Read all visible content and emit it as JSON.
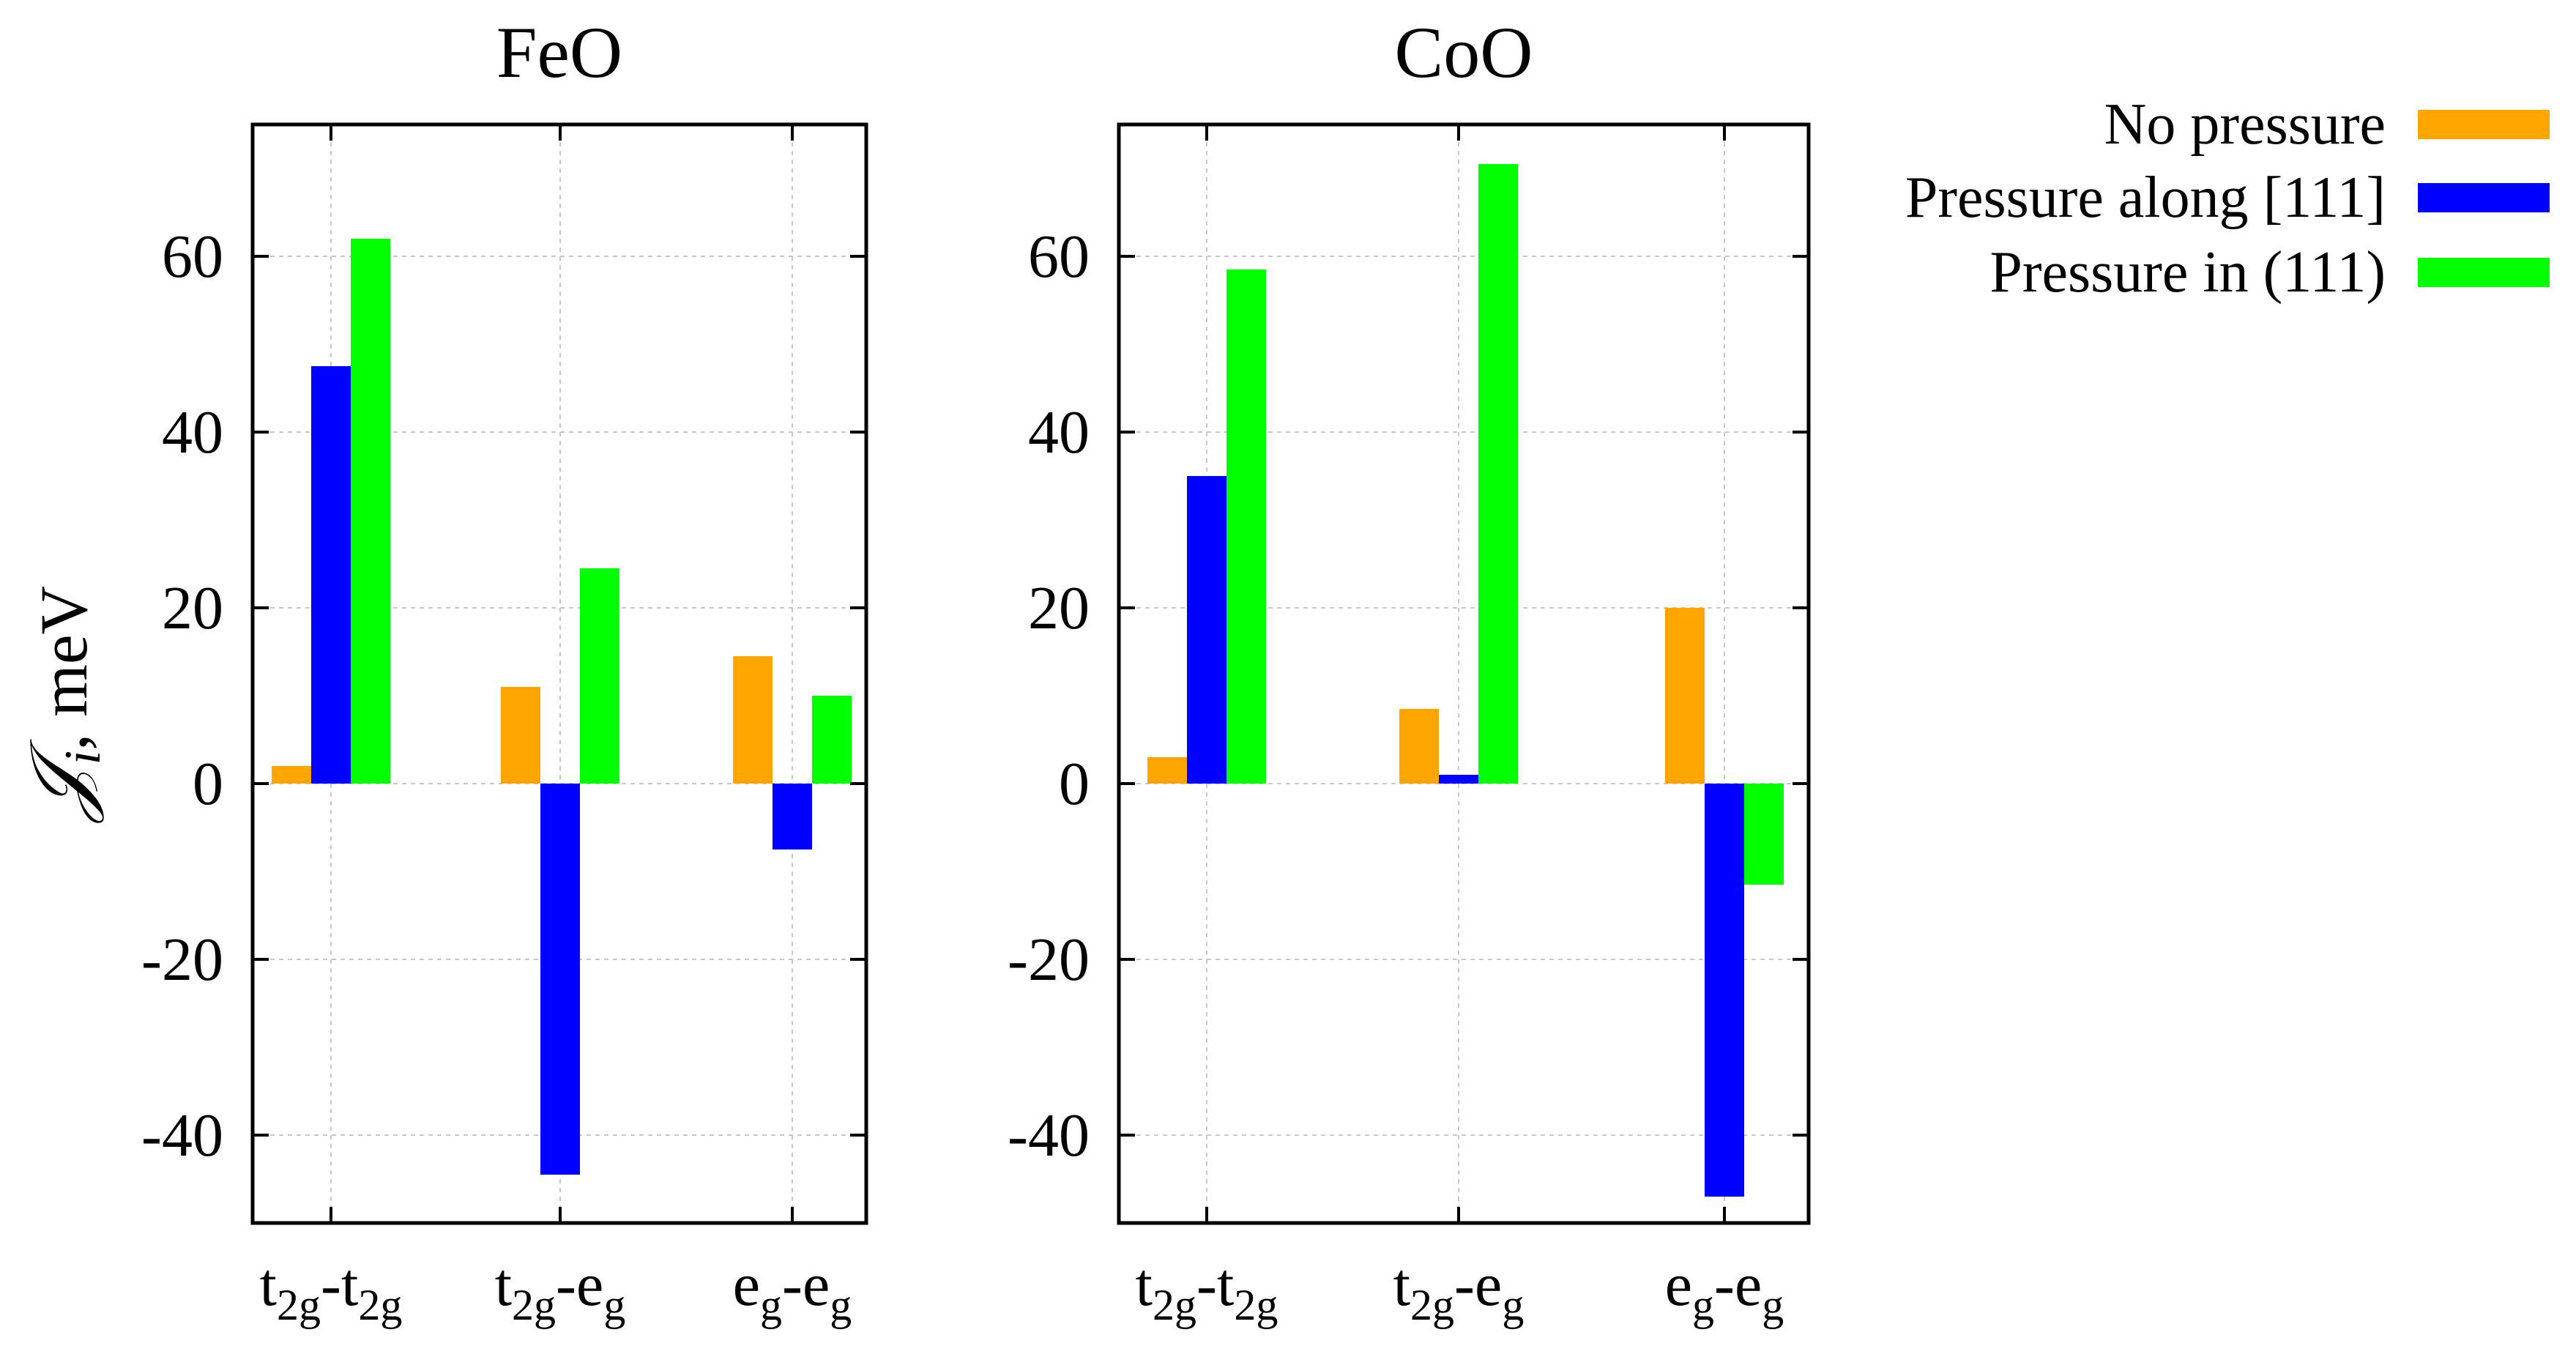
{
  "ylabel_main": "𝒥",
  "ylabel_sub": "i",
  "ylabel_rest": ", meV",
  "legend": [
    {
      "label": "No pressure",
      "color": "#ffa500"
    },
    {
      "label": "Pressure along [111]",
      "color": "#0000ff"
    },
    {
      "label": "Pressure in (111)",
      "color": "#00ff00"
    }
  ],
  "category_labels": [
    {
      "a": "t",
      "as": "2g",
      "sep": "-",
      "b": "t",
      "bs": "2g"
    },
    {
      "a": "t",
      "as": "2g",
      "sep": "-",
      "b": "e",
      "bs": "g"
    },
    {
      "a": "e",
      "as": "g",
      "sep": "-",
      "b": "e",
      "bs": "g"
    }
  ],
  "chart_data": [
    {
      "type": "bar",
      "title": "FeO",
      "categories": [
        "t2g-t2g",
        "t2g-eg",
        "eg-eg"
      ],
      "ylabel": "𝒥i, meV",
      "ylim": [
        -50,
        75
      ],
      "yticks": [
        -40,
        -20,
        0,
        20,
        40,
        60
      ],
      "grid": true,
      "series": [
        {
          "name": "No pressure",
          "values": [
            2,
            11,
            14.5
          ]
        },
        {
          "name": "Pressure along [111]",
          "values": [
            47.5,
            -44.5,
            -7.5
          ]
        },
        {
          "name": "Pressure in (111)",
          "values": [
            62,
            24.5,
            10
          ]
        }
      ]
    },
    {
      "type": "bar",
      "title": "CoO",
      "categories": [
        "t2g-t2g",
        "t2g-eg",
        "eg-eg"
      ],
      "ylabel": "𝒥i, meV",
      "ylim": [
        -50,
        75
      ],
      "yticks": [
        -40,
        -20,
        0,
        20,
        40,
        60
      ],
      "grid": true,
      "series": [
        {
          "name": "No pressure",
          "values": [
            3,
            8.5,
            20
          ]
        },
        {
          "name": "Pressure along [111]",
          "values": [
            35,
            1,
            -47
          ]
        },
        {
          "name": "Pressure in (111)",
          "values": [
            58.5,
            70.5,
            -11.5
          ]
        }
      ]
    }
  ]
}
